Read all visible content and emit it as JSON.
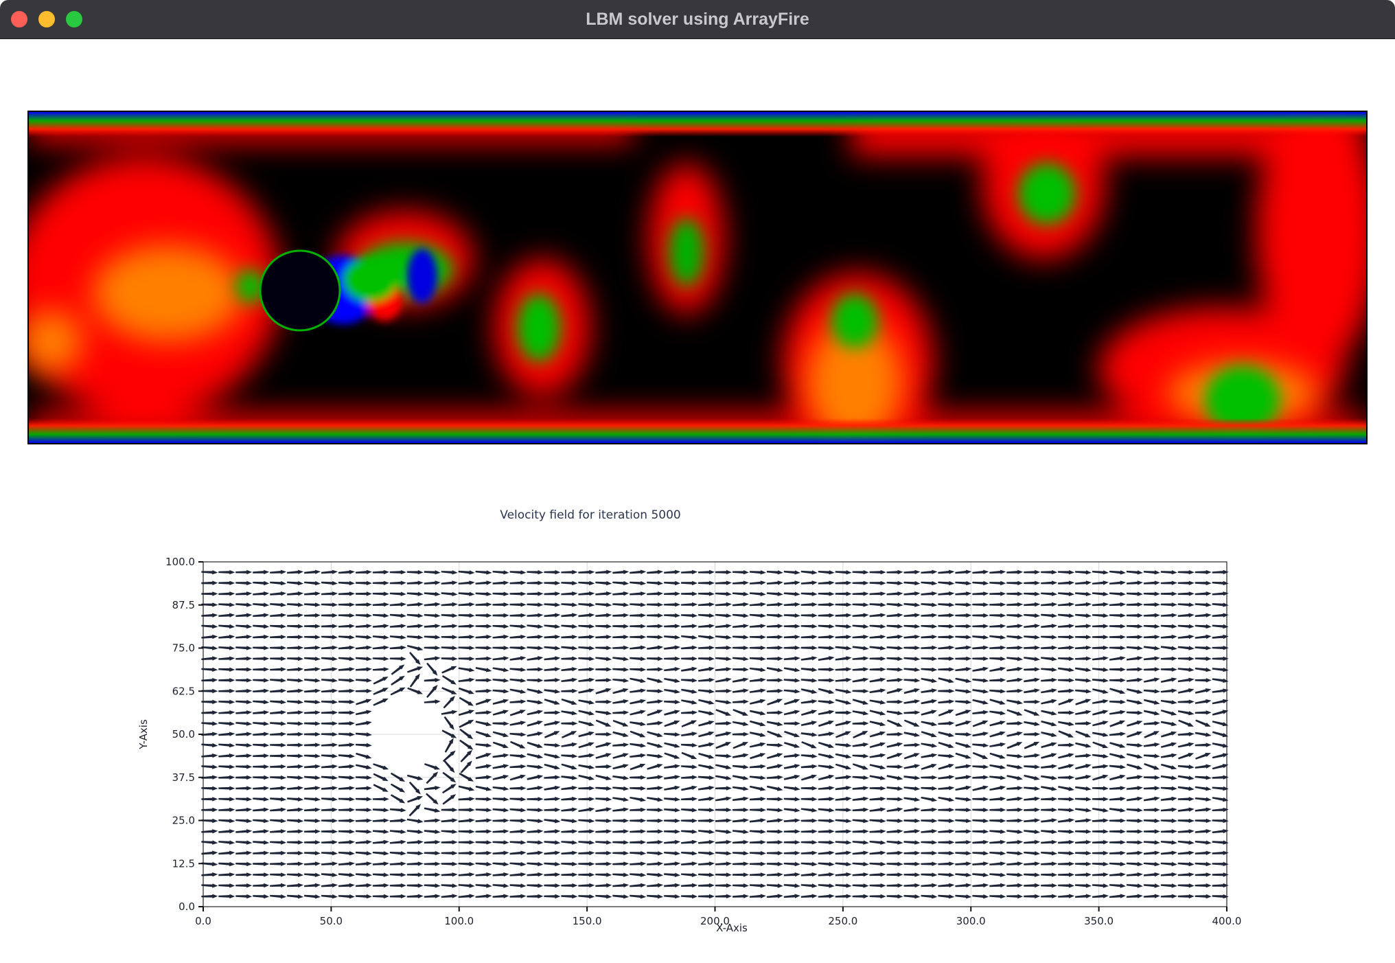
{
  "window": {
    "title": "LBM solver using ArrayFire"
  },
  "colors": {
    "titlebar": "#38373c",
    "close": "#ff5f57",
    "minimize": "#febc2e",
    "maximize": "#28c840",
    "arrow": "#1e2638",
    "heat_black": "#000000",
    "heat_red": "#ff0000",
    "heat_orange": "#ff8c00",
    "heat_green": "#00c000",
    "heat_blue": "#0000ff"
  },
  "heatmap": {
    "colormap": "heat"
  },
  "chart_data": {
    "type": "quiver",
    "title": "Velocity field for iteration 5000",
    "xlabel": "X-Axis",
    "ylabel": "Y-Axis",
    "xlim": [
      0,
      400
    ],
    "ylim": [
      0,
      100
    ],
    "x_ticks": [
      "0.0",
      "50.0",
      "100.0",
      "150.0",
      "200.0",
      "250.0",
      "300.0",
      "350.0",
      "400.0"
    ],
    "y_ticks": [
      "0.0",
      "12.5",
      "25.0",
      "37.5",
      "50.0",
      "62.5",
      "75.0",
      "87.5",
      "100.0"
    ],
    "grid": true,
    "obstacle": {
      "shape": "circle",
      "center": [
        80,
        50
      ],
      "radius": 12
    }
  }
}
